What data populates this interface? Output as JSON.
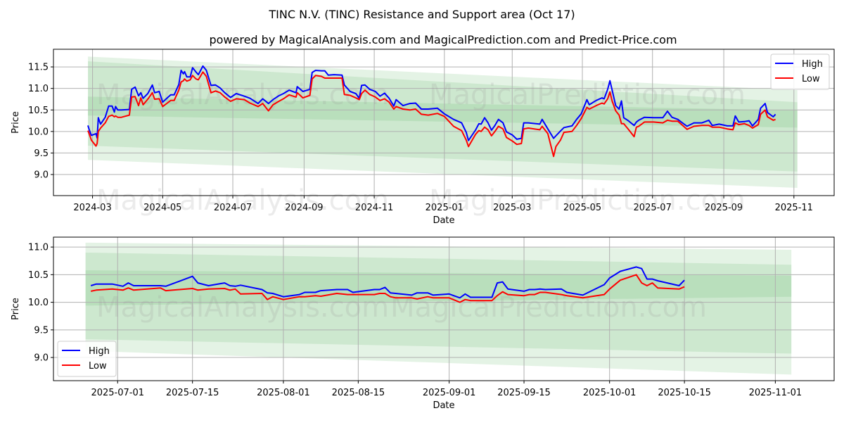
{
  "title": "TINC N.V. (TINC) Resistance and Support area (Oct 17)",
  "subtitle": "powered by MagicalAnalysis.com and MagicalPrediction.com and Predict-Price.com",
  "watermarks": [
    "MagicalAnalysis.com",
    "MagicalPrediction.com"
  ],
  "colors": {
    "high": "#0000ff",
    "low": "#ff0000",
    "band": "#4caf50",
    "grid": "#b0b0b0"
  },
  "chart_data": [
    {
      "type": "line",
      "name": "full-history",
      "xlabel": "Date",
      "ylabel": "Price",
      "xlim": [
        "2024-01-27",
        "2025-12-06"
      ],
      "ylim": [
        8.51,
        11.91
      ],
      "grid": true,
      "legend": "top-right",
      "yticks": [
        9.0,
        9.5,
        10.0,
        10.5,
        11.0,
        11.5
      ],
      "xticks": [
        "2024-03",
        "2024-05",
        "2024-07",
        "2024-09",
        "2024-11",
        "2025-01",
        "2025-03",
        "2025-05",
        "2025-07",
        "2025-09",
        "2025-11"
      ],
      "series_names": [
        "High",
        "Low"
      ],
      "bands": {
        "start": "2024-02-26",
        "end": "2025-11-04",
        "levels": [
          {
            "start": [
              11.74,
              9.34
            ],
            "end": [
              10.96,
              8.69
            ]
          },
          {
            "start": [
              11.63,
              9.67
            ],
            "end": [
              10.68,
              9.07
            ]
          },
          {
            "start": [
              10.81,
              10.37
            ],
            "end": [
              10.49,
              10.09
            ]
          }
        ]
      },
      "points": [
        [
          "2024-02-26",
          10.14,
          10.02
        ],
        [
          "2024-02-27",
          10.05,
          9.95
        ],
        [
          "2024-02-29",
          9.91,
          9.8
        ],
        [
          "2024-03-04",
          9.95,
          9.66
        ],
        [
          "2024-03-05",
          9.85,
          9.72
        ],
        [
          "2024-03-06",
          10.32,
          10.0
        ],
        [
          "2024-03-08",
          10.17,
          10.08
        ],
        [
          "2024-03-12",
          10.33,
          10.2
        ],
        [
          "2024-03-15",
          10.59,
          10.35
        ],
        [
          "2024-03-18",
          10.59,
          10.38
        ],
        [
          "2024-03-20",
          10.45,
          10.34
        ],
        [
          "2024-03-21",
          10.58,
          10.36
        ],
        [
          "2024-03-23",
          10.5,
          10.33
        ],
        [
          "2024-03-26",
          10.5,
          10.33
        ],
        [
          "2024-04-02",
          10.51,
          10.38
        ],
        [
          "2024-04-04",
          10.98,
          10.8
        ],
        [
          "2024-04-07",
          11.03,
          10.81
        ],
        [
          "2024-04-10",
          10.83,
          10.6
        ],
        [
          "2024-04-12",
          10.9,
          10.78
        ],
        [
          "2024-04-14",
          10.77,
          10.62
        ],
        [
          "2024-04-18",
          10.88,
          10.75
        ],
        [
          "2024-04-22",
          11.08,
          10.9
        ],
        [
          "2024-04-24",
          10.9,
          10.75
        ],
        [
          "2024-04-28",
          10.93,
          10.76
        ],
        [
          "2024-05-01",
          10.68,
          10.58
        ],
        [
          "2024-05-05",
          10.78,
          10.66
        ],
        [
          "2024-05-08",
          10.85,
          10.72
        ],
        [
          "2024-05-11",
          10.85,
          10.72
        ],
        [
          "2024-05-15",
          11.09,
          10.96
        ],
        [
          "2024-05-17",
          11.42,
          11.15
        ],
        [
          "2024-05-19",
          11.34,
          11.18
        ],
        [
          "2024-05-20",
          11.39,
          11.22
        ],
        [
          "2024-05-22",
          11.27,
          11.17
        ],
        [
          "2024-05-25",
          11.27,
          11.2
        ],
        [
          "2024-05-27",
          11.48,
          11.3
        ],
        [
          "2024-05-30",
          11.38,
          11.22
        ],
        [
          "2024-06-01",
          11.32,
          11.2
        ],
        [
          "2024-06-05",
          11.52,
          11.38
        ],
        [
          "2024-06-08",
          11.42,
          11.28
        ],
        [
          "2024-06-12",
          11.07,
          10.9
        ],
        [
          "2024-06-16",
          11.08,
          10.94
        ],
        [
          "2024-06-20",
          11.01,
          10.9
        ],
        [
          "2024-06-24",
          10.9,
          10.8
        ],
        [
          "2024-06-29",
          10.79,
          10.7
        ],
        [
          "2024-07-04",
          10.88,
          10.76
        ],
        [
          "2024-07-11",
          10.82,
          10.74
        ],
        [
          "2024-07-16",
          10.77,
          10.66
        ],
        [
          "2024-07-23",
          10.65,
          10.58
        ],
        [
          "2024-07-27",
          10.76,
          10.65
        ],
        [
          "2024-08-01",
          10.65,
          10.48
        ],
        [
          "2024-08-05",
          10.74,
          10.62
        ],
        [
          "2024-08-10",
          10.83,
          10.7
        ],
        [
          "2024-08-14",
          10.88,
          10.76
        ],
        [
          "2024-08-19",
          10.96,
          10.85
        ],
        [
          "2024-08-25",
          10.9,
          10.8
        ],
        [
          "2024-08-26",
          11.04,
          10.9
        ],
        [
          "2024-08-31",
          10.93,
          10.78
        ],
        [
          "2024-09-06",
          10.98,
          10.84
        ],
        [
          "2024-09-08",
          11.37,
          11.22
        ],
        [
          "2024-09-11",
          11.42,
          11.3
        ],
        [
          "2024-09-16",
          11.41,
          11.28
        ],
        [
          "2024-09-19",
          11.41,
          11.24
        ],
        [
          "2024-09-22",
          11.31,
          11.24
        ],
        [
          "2024-09-27",
          11.32,
          11.24
        ],
        [
          "2024-10-04",
          11.31,
          11.24
        ],
        [
          "2024-10-06",
          11.08,
          10.86
        ],
        [
          "2024-10-11",
          10.93,
          10.84
        ],
        [
          "2024-10-16",
          10.88,
          10.78
        ],
        [
          "2024-10-19",
          10.77,
          10.74
        ],
        [
          "2024-10-21",
          11.07,
          10.88
        ],
        [
          "2024-10-24",
          11.08,
          10.96
        ],
        [
          "2024-10-28",
          10.98,
          10.86
        ],
        [
          "2024-11-02",
          10.93,
          10.8
        ],
        [
          "2024-11-06",
          10.82,
          10.72
        ],
        [
          "2024-11-10",
          10.89,
          10.76
        ],
        [
          "2024-11-14",
          10.77,
          10.68
        ],
        [
          "2024-11-18",
          10.59,
          10.52
        ],
        [
          "2024-11-20",
          10.74,
          10.58
        ],
        [
          "2024-11-26",
          10.6,
          10.52
        ],
        [
          "2024-12-02",
          10.65,
          10.5
        ],
        [
          "2024-12-07",
          10.66,
          10.52
        ],
        [
          "2024-12-12",
          10.52,
          10.4
        ],
        [
          "2024-12-18",
          10.52,
          10.38
        ],
        [
          "2024-12-26",
          10.54,
          10.42
        ],
        [
          "2025-01-01",
          10.41,
          10.35
        ],
        [
          "2025-01-09",
          10.28,
          10.12
        ],
        [
          "2025-01-16",
          10.2,
          10.02
        ],
        [
          "2025-01-20",
          9.98,
          9.8
        ],
        [
          "2025-01-22",
          9.79,
          9.65
        ],
        [
          "2025-01-28",
          10.03,
          9.93
        ],
        [
          "2025-01-31",
          10.18,
          10.02
        ],
        [
          "2025-02-02",
          10.17,
          10.0
        ],
        [
          "2025-02-05",
          10.32,
          10.1
        ],
        [
          "2025-02-08",
          10.2,
          10.04
        ],
        [
          "2025-02-11",
          10.03,
          9.9
        ],
        [
          "2025-02-14",
          10.14,
          10.0
        ],
        [
          "2025-02-17",
          10.28,
          10.12
        ],
        [
          "2025-02-21",
          10.2,
          10.06
        ],
        [
          "2025-02-24",
          9.99,
          9.86
        ],
        [
          "2025-03-01",
          9.92,
          9.78
        ],
        [
          "2025-03-05",
          9.82,
          9.7
        ],
        [
          "2025-03-09",
          9.84,
          9.72
        ],
        [
          "2025-03-11",
          10.2,
          10.06
        ],
        [
          "2025-03-15",
          10.2,
          10.08
        ],
        [
          "2025-03-25",
          10.17,
          10.04
        ],
        [
          "2025-03-27",
          10.28,
          10.12
        ],
        [
          "2025-04-01",
          10.06,
          9.95
        ],
        [
          "2025-04-06",
          9.84,
          9.42
        ],
        [
          "2025-04-08",
          9.9,
          9.65
        ],
        [
          "2025-04-12",
          10.01,
          9.8
        ],
        [
          "2025-04-15",
          10.09,
          9.98
        ],
        [
          "2025-04-22",
          10.13,
          10.0
        ],
        [
          "2025-04-26",
          10.28,
          10.14
        ],
        [
          "2025-04-30",
          10.41,
          10.3
        ],
        [
          "2025-05-05",
          10.74,
          10.56
        ],
        [
          "2025-05-07",
          10.62,
          10.52
        ],
        [
          "2025-05-13",
          10.72,
          10.6
        ],
        [
          "2025-05-18",
          10.78,
          10.66
        ],
        [
          "2025-05-20",
          10.76,
          10.64
        ],
        [
          "2025-05-23",
          10.98,
          10.76
        ],
        [
          "2025-05-25",
          11.18,
          10.92
        ],
        [
          "2025-05-27",
          10.95,
          10.7
        ],
        [
          "2025-05-30",
          10.6,
          10.48
        ],
        [
          "2025-06-02",
          10.52,
          10.38
        ],
        [
          "2025-06-04",
          10.71,
          10.18
        ],
        [
          "2025-06-06",
          10.32,
          10.18
        ],
        [
          "2025-06-10",
          10.25,
          10.05
        ],
        [
          "2025-06-15",
          10.14,
          9.88
        ],
        [
          "2025-06-17",
          10.22,
          10.1
        ],
        [
          "2025-06-19",
          10.26,
          10.12
        ],
        [
          "2025-06-24",
          10.33,
          10.22
        ],
        [
          "2025-07-02",
          10.32,
          10.22
        ],
        [
          "2025-07-10",
          10.32,
          10.2
        ],
        [
          "2025-07-14",
          10.47,
          10.26
        ],
        [
          "2025-07-18",
          10.33,
          10.24
        ],
        [
          "2025-07-23",
          10.28,
          10.24
        ],
        [
          "2025-07-31",
          10.12,
          10.05
        ],
        [
          "2025-08-06",
          10.2,
          10.12
        ],
        [
          "2025-08-13",
          10.2,
          10.14
        ],
        [
          "2025-08-19",
          10.26,
          10.14
        ],
        [
          "2025-08-22",
          10.14,
          10.1
        ],
        [
          "2025-08-28",
          10.17,
          10.1
        ],
        [
          "2025-09-04",
          10.13,
          10.06
        ],
        [
          "2025-09-09",
          10.13,
          10.04
        ],
        [
          "2025-09-11",
          10.36,
          10.2
        ],
        [
          "2025-09-14",
          10.22,
          10.16
        ],
        [
          "2025-09-19",
          10.23,
          10.18
        ],
        [
          "2025-09-23",
          10.25,
          10.14
        ],
        [
          "2025-09-26",
          10.13,
          10.08
        ],
        [
          "2025-10-01",
          10.28,
          10.16
        ],
        [
          "2025-10-03",
          10.54,
          10.4
        ],
        [
          "2025-10-07",
          10.65,
          10.5
        ],
        [
          "2025-10-09",
          10.44,
          10.34
        ],
        [
          "2025-10-14",
          10.34,
          10.26
        ],
        [
          "2025-10-16",
          10.4,
          10.28
        ]
      ]
    },
    {
      "type": "line",
      "name": "recent",
      "xlabel": "Date",
      "ylabel": "Price",
      "xlim": [
        "2025-06-19",
        "2025-11-12"
      ],
      "ylim": [
        8.58,
        11.18
      ],
      "grid": true,
      "legend": "bottom-left",
      "yticks": [
        9.0,
        9.5,
        10.0,
        10.5,
        11.0
      ],
      "xticks": [
        "2025-07-01",
        "2025-07-15",
        "2025-08-01",
        "2025-08-15",
        "2025-09-01",
        "2025-09-15",
        "2025-10-01",
        "2025-10-15",
        "2025-11-01"
      ],
      "series_names": [
        "High",
        "Low"
      ],
      "bands": {
        "start": "2025-06-25",
        "end": "2025-11-04",
        "levels": [
          {
            "start": [
              11.08,
              9.12
            ],
            "end": [
              10.95,
              8.69
            ]
          },
          {
            "start": [
              10.9,
              9.33
            ],
            "end": [
              10.68,
              9.07
            ]
          },
          {
            "start": [
              10.58,
              9.94
            ],
            "end": [
              10.48,
              10.1
            ]
          }
        ]
      },
      "points": [
        [
          "2025-06-26",
          10.3,
          10.2
        ],
        [
          "2025-06-27",
          10.33,
          10.22
        ],
        [
          "2025-06-30",
          10.33,
          10.24
        ],
        [
          "2025-07-02",
          10.29,
          10.22
        ],
        [
          "2025-07-03",
          10.35,
          10.26
        ],
        [
          "2025-07-04",
          10.3,
          10.22
        ],
        [
          "2025-07-09",
          10.3,
          10.26
        ],
        [
          "2025-07-10",
          10.29,
          10.21
        ],
        [
          "2025-07-15",
          10.47,
          10.25
        ],
        [
          "2025-07-16",
          10.35,
          10.22
        ],
        [
          "2025-07-18",
          10.3,
          10.24
        ],
        [
          "2025-07-21",
          10.35,
          10.25
        ],
        [
          "2025-07-22",
          10.3,
          10.22
        ],
        [
          "2025-07-23",
          10.29,
          10.24
        ],
        [
          "2025-07-24",
          10.31,
          10.15
        ],
        [
          "2025-07-28",
          10.23,
          10.16
        ],
        [
          "2025-07-29",
          10.17,
          10.05
        ],
        [
          "2025-07-30",
          10.16,
          10.1
        ],
        [
          "2025-08-01",
          10.1,
          10.05
        ],
        [
          "2025-08-04",
          10.14,
          10.1
        ],
        [
          "2025-08-05",
          10.18,
          10.1
        ],
        [
          "2025-08-07",
          10.18,
          10.12
        ],
        [
          "2025-08-08",
          10.21,
          10.11
        ],
        [
          "2025-08-11",
          10.23,
          10.16
        ],
        [
          "2025-08-13",
          10.23,
          10.14
        ],
        [
          "2025-08-14",
          10.18,
          10.14
        ],
        [
          "2025-08-18",
          10.23,
          10.14
        ],
        [
          "2025-08-19",
          10.23,
          10.16
        ],
        [
          "2025-08-20",
          10.27,
          10.16
        ],
        [
          "2025-08-21",
          10.17,
          10.1
        ],
        [
          "2025-08-22",
          10.16,
          10.08
        ],
        [
          "2025-08-25",
          10.13,
          10.08
        ],
        [
          "2025-08-26",
          10.17,
          10.06
        ],
        [
          "2025-08-28",
          10.17,
          10.1
        ],
        [
          "2025-08-29",
          10.13,
          10.08
        ],
        [
          "2025-09-01",
          10.15,
          10.08
        ],
        [
          "2025-09-03",
          10.08,
          10.0
        ],
        [
          "2025-09-04",
          10.15,
          10.05
        ],
        [
          "2025-09-05",
          10.09,
          10.03
        ],
        [
          "2025-09-09",
          10.09,
          10.03
        ],
        [
          "2025-09-10",
          10.35,
          10.12
        ],
        [
          "2025-09-11",
          10.37,
          10.19
        ],
        [
          "2025-09-12",
          10.24,
          10.14
        ],
        [
          "2025-09-15",
          10.2,
          10.12
        ],
        [
          "2025-09-16",
          10.23,
          10.14
        ],
        [
          "2025-09-17",
          10.23,
          10.14
        ],
        [
          "2025-09-18",
          10.24,
          10.18
        ],
        [
          "2025-09-19",
          10.23,
          10.18
        ],
        [
          "2025-09-22",
          10.24,
          10.14
        ],
        [
          "2025-09-23",
          10.18,
          10.12
        ],
        [
          "2025-09-26",
          10.13,
          10.08
        ],
        [
          "2025-09-30",
          10.32,
          10.14
        ],
        [
          "2025-10-01",
          10.44,
          10.24
        ],
        [
          "2025-10-03",
          10.56,
          10.4
        ],
        [
          "2025-10-06",
          10.64,
          10.5
        ],
        [
          "2025-10-07",
          10.61,
          10.35
        ],
        [
          "2025-10-08",
          10.42,
          10.3
        ],
        [
          "2025-10-09",
          10.42,
          10.35
        ],
        [
          "2025-10-10",
          10.39,
          10.26
        ],
        [
          "2025-10-14",
          10.3,
          10.24
        ],
        [
          "2025-10-15",
          10.4,
          10.28
        ]
      ]
    }
  ]
}
